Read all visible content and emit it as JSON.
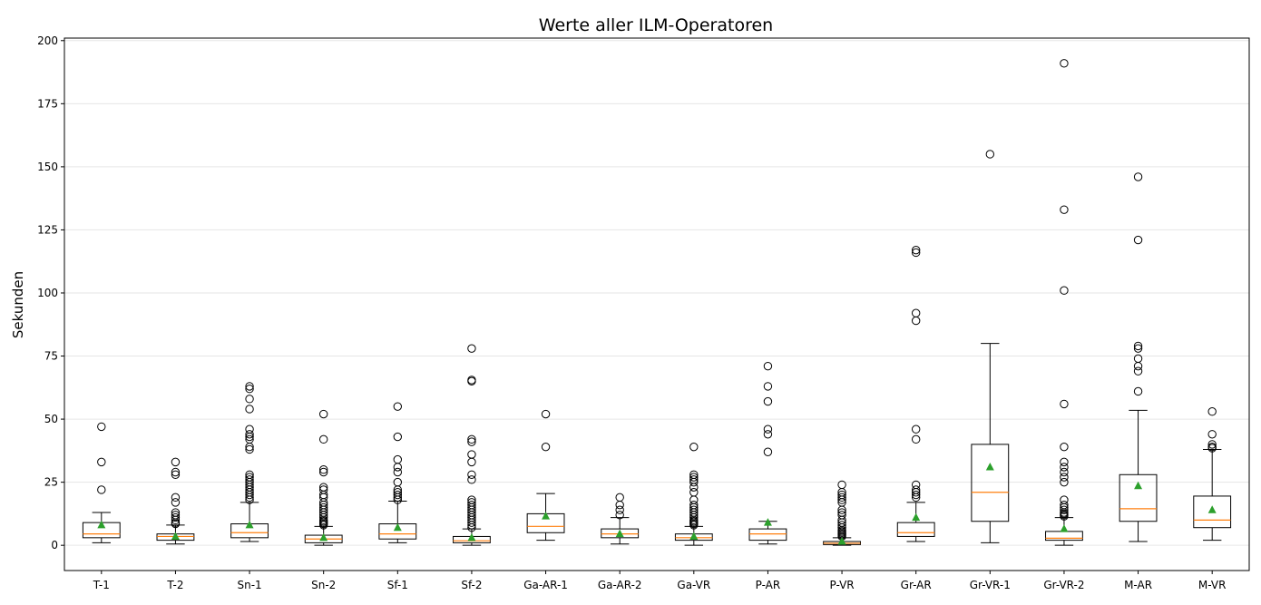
{
  "chart_data": {
    "type": "box",
    "title": "Werte aller ILM-Operatoren",
    "xlabel": "",
    "ylabel": "Sekunden",
    "ylim": [
      -10,
      201
    ],
    "yticks": [
      0,
      25,
      50,
      75,
      100,
      125,
      150,
      175,
      200
    ],
    "grid": "horizontal",
    "colors": {
      "median": "#ff7f0e",
      "mean": "#2ca02c",
      "box": "#000000",
      "grid": "#e6e6e6"
    },
    "categories": [
      "T-1",
      "T-2",
      "Sn-1",
      "Sn-2",
      "Sf-1",
      "Sf-2",
      "Ga-AR-1",
      "Ga-AR-2",
      "Ga-VR",
      "P-AR",
      "P-VR",
      "Gr-AR",
      "Gr-VR-1",
      "Gr-VR-2",
      "M-AR",
      "M-VR"
    ],
    "boxes": [
      {
        "label": "T-1",
        "whisker_low": 1,
        "q1": 3,
        "median": 4.5,
        "q3": 9,
        "whisker_high": 13,
        "mean": 8,
        "outliers": [
          22,
          33,
          47
        ]
      },
      {
        "label": "T-2",
        "whisker_low": 0.5,
        "q1": 2,
        "median": 3.5,
        "q3": 4.5,
        "whisker_high": 8,
        "mean": 3.5,
        "outliers": [
          8.5,
          9,
          10,
          11,
          12,
          13,
          17,
          19,
          28,
          29,
          33
        ]
      },
      {
        "label": "Sn-1",
        "whisker_low": 1.5,
        "q1": 3,
        "median": 5,
        "q3": 8.5,
        "whisker_high": 17,
        "mean": 8,
        "outliers": [
          18,
          19,
          20,
          21,
          22,
          23,
          24,
          25,
          26,
          27,
          28,
          38,
          39,
          42,
          43,
          44,
          46,
          54,
          58,
          62,
          63
        ]
      },
      {
        "label": "Sn-2",
        "whisker_low": 0,
        "q1": 1,
        "median": 2.5,
        "q3": 4,
        "whisker_high": 7.5,
        "mean": 3,
        "outliers": [
          8,
          8.5,
          9,
          9.5,
          10,
          11,
          12,
          13,
          14,
          15,
          16,
          17,
          19,
          20,
          22,
          23,
          29,
          30,
          42,
          52
        ]
      },
      {
        "label": "Sf-1",
        "whisker_low": 1,
        "q1": 2.5,
        "median": 4.5,
        "q3": 8.5,
        "whisker_high": 17.5,
        "mean": 7,
        "outliers": [
          18,
          19,
          20,
          21,
          22,
          25,
          29,
          31,
          34,
          43,
          55
        ]
      },
      {
        "label": "Sf-2",
        "whisker_low": 0,
        "q1": 1,
        "median": 1.8,
        "q3": 3.5,
        "whisker_high": 6.5,
        "mean": 3,
        "outliers": [
          7,
          8,
          9,
          10,
          11,
          12,
          13,
          14,
          15,
          16,
          17,
          18,
          26,
          28,
          33,
          36,
          41,
          42,
          65,
          65.5,
          78
        ]
      },
      {
        "label": "Ga-AR-1",
        "whisker_low": 2,
        "q1": 5,
        "median": 7.5,
        "q3": 12.5,
        "whisker_high": 20.5,
        "mean": 11.5,
        "outliers": [
          39,
          52
        ]
      },
      {
        "label": "Ga-AR-2",
        "whisker_low": 0.5,
        "q1": 3,
        "median": 4.5,
        "q3": 6.5,
        "whisker_high": 11,
        "mean": 4.5,
        "outliers": [
          12,
          14,
          16,
          19
        ]
      },
      {
        "label": "Ga-VR",
        "whisker_low": 0,
        "q1": 2,
        "median": 3,
        "q3": 4.5,
        "whisker_high": 7.5,
        "mean": 3.5,
        "outliers": [
          8,
          8.5,
          9,
          9.5,
          10,
          11,
          12,
          13,
          14,
          15,
          16,
          18,
          21,
          23,
          25,
          26,
          27,
          28,
          39
        ]
      },
      {
        "label": "P-AR",
        "whisker_low": 0.5,
        "q1": 2,
        "median": 4.5,
        "q3": 6.5,
        "whisker_high": 9.5,
        "mean": 9,
        "outliers": [
          37,
          44,
          46,
          57,
          63,
          71
        ]
      },
      {
        "label": "P-VR",
        "whisker_low": 0,
        "q1": 0.3,
        "median": 0.8,
        "q3": 1.5,
        "whisker_high": 3,
        "mean": 1.5,
        "outliers": [
          3.5,
          4,
          4.5,
          5,
          5.5,
          6,
          7,
          8,
          9,
          10,
          12,
          13,
          14,
          17,
          18,
          19,
          20,
          21,
          24
        ]
      },
      {
        "label": "Gr-AR",
        "whisker_low": 1.5,
        "q1": 3.5,
        "median": 5,
        "q3": 9,
        "whisker_high": 17,
        "mean": 11,
        "outliers": [
          19,
          20,
          21,
          22,
          24,
          42,
          46,
          89,
          92,
          116,
          117
        ]
      },
      {
        "label": "Gr-VR-1",
        "whisker_low": 1,
        "q1": 9.5,
        "median": 21,
        "q3": 40,
        "whisker_high": 80,
        "mean": 31,
        "outliers": [
          155
        ]
      },
      {
        "label": "Gr-VR-2",
        "whisker_low": 0,
        "q1": 2,
        "median": 2.8,
        "q3": 5.5,
        "whisker_high": 11,
        "mean": 6.5,
        "outliers": [
          11.5,
          12,
          12.5,
          13,
          14,
          15,
          16,
          18,
          25,
          27,
          29,
          31,
          33,
          39,
          56,
          101,
          133,
          191
        ]
      },
      {
        "label": "M-AR",
        "whisker_low": 1.5,
        "q1": 9.5,
        "median": 14.5,
        "q3": 28,
        "whisker_high": 53.5,
        "mean": 23.5,
        "outliers": [
          61,
          69,
          71,
          74,
          78,
          79,
          121,
          146
        ]
      },
      {
        "label": "M-VR",
        "whisker_low": 2,
        "q1": 7,
        "median": 10,
        "q3": 19.5,
        "whisker_high": 38,
        "mean": 14,
        "outliers": [
          38.5,
          39,
          40,
          44,
          53
        ]
      }
    ]
  }
}
